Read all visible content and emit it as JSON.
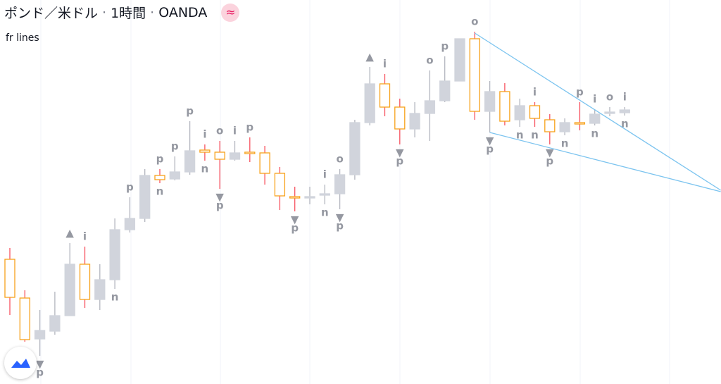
{
  "header": {
    "symbol": "ポンド／米ドル",
    "separator": "·",
    "interval": "1時間",
    "source": "OANDA",
    "badge": "≈"
  },
  "chart_data": {
    "type": "candlestick",
    "indicator": "fr lines",
    "open": [
      177,
      122,
      64,
      75,
      97,
      170,
      120,
      148,
      219,
      235,
      296,
      291,
      301,
      332,
      329,
      319,
      329,
      328,
      299,
      266,
      264,
      268,
      270,
      297,
      371,
      426,
      393,
      362,
      384,
      402,
      430,
      490,
      387,
      415,
      375,
      395,
      375,
      358,
      371,
      370,
      384,
      385
    ],
    "high": [
      193,
      133,
      105,
      131,
      200,
      195,
      170,
      235,
      265,
      305,
      305,
      323,
      373,
      340,
      345,
      345,
      350,
      338,
      308,
      280,
      280,
      283,
      305,
      375,
      450,
      440,
      405,
      400,
      445,
      465,
      490,
      500,
      430,
      427,
      405,
      400,
      383,
      377,
      400,
      390,
      393,
      393
    ],
    "low": [
      98,
      60,
      40,
      70,
      97,
      108,
      105,
      135,
      215,
      230,
      285,
      289,
      297,
      317,
      277,
      317,
      315,
      283,
      247,
      245,
      255,
      255,
      248,
      290,
      367,
      380,
      340,
      350,
      345,
      400,
      430,
      375,
      357,
      367,
      365,
      365,
      340,
      353,
      360,
      367,
      380,
      381
    ],
    "close": [
      123,
      63,
      76,
      97,
      170,
      120,
      148,
      219,
      235,
      296,
      290,
      301,
      331,
      329,
      319,
      328,
      327,
      299,
      267,
      264,
      266,
      270,
      297,
      371,
      426,
      393,
      362,
      384,
      402,
      430,
      490,
      387,
      415,
      373,
      395,
      377,
      358,
      371,
      369,
      383,
      386,
      389
    ],
    "ylim": [
      0,
      545
    ],
    "up_color": "#d1d4dc",
    "up_wick_color": "#b2b5be",
    "down_color": "#f7a21b",
    "down_wick_color": "#f7525f",
    "marker_color": "#9598a1",
    "line_color": "#7cc4ef",
    "markers": [
      {
        "candle": 2,
        "side": "below",
        "text": "▼"
      },
      {
        "candle": 2,
        "side": "below",
        "text": "p"
      },
      {
        "candle": 4,
        "side": "above",
        "text": "▲"
      },
      {
        "candle": 5,
        "side": "above",
        "text": "i"
      },
      {
        "candle": 7,
        "side": "below",
        "text": "n"
      },
      {
        "candle": 8,
        "side": "above",
        "text": "p"
      },
      {
        "candle": 10,
        "side": "above",
        "text": "p"
      },
      {
        "candle": 10,
        "side": "below",
        "text": "n"
      },
      {
        "candle": 11,
        "side": "above",
        "text": "p"
      },
      {
        "candle": 12,
        "side": "above",
        "text": "p"
      },
      {
        "candle": 13,
        "side": "above",
        "text": "i"
      },
      {
        "candle": 13,
        "side": "below",
        "text": "n"
      },
      {
        "candle": 14,
        "side": "above",
        "text": "o"
      },
      {
        "candle": 14,
        "side": "below",
        "text": "▼"
      },
      {
        "candle": 14,
        "side": "below",
        "text": "p"
      },
      {
        "candle": 15,
        "side": "above",
        "text": "i"
      },
      {
        "candle": 16,
        "side": "above",
        "text": "p"
      },
      {
        "candle": 19,
        "side": "below",
        "text": "▼"
      },
      {
        "candle": 19,
        "side": "below",
        "text": "p"
      },
      {
        "candle": 21,
        "side": "above",
        "text": "i"
      },
      {
        "candle": 21,
        "side": "below",
        "text": "n"
      },
      {
        "candle": 22,
        "side": "above",
        "text": "o"
      },
      {
        "candle": 22,
        "side": "below",
        "text": "▼"
      },
      {
        "candle": 22,
        "side": "below",
        "text": "p"
      },
      {
        "candle": 24,
        "side": "above",
        "text": "▲"
      },
      {
        "candle": 25,
        "side": "above",
        "text": "i"
      },
      {
        "candle": 26,
        "side": "below",
        "text": "▼"
      },
      {
        "candle": 26,
        "side": "below",
        "text": "p"
      },
      {
        "candle": 28,
        "side": "above",
        "text": "o"
      },
      {
        "candle": 29,
        "side": "above",
        "text": "p"
      },
      {
        "candle": 31,
        "side": "above",
        "text": "o"
      },
      {
        "candle": 32,
        "side": "below",
        "text": "▼"
      },
      {
        "candle": 32,
        "side": "below",
        "text": "p"
      },
      {
        "candle": 34,
        "side": "below",
        "text": "n"
      },
      {
        "candle": 35,
        "side": "above",
        "text": "i"
      },
      {
        "candle": 35,
        "side": "below",
        "text": "n"
      },
      {
        "candle": 36,
        "side": "below",
        "text": "▼"
      },
      {
        "candle": 36,
        "side": "below",
        "text": "p"
      },
      {
        "candle": 37,
        "side": "below",
        "text": "n"
      },
      {
        "candle": 38,
        "side": "above",
        "text": "p"
      },
      {
        "candle": 39,
        "side": "above",
        "text": "i"
      },
      {
        "candle": 39,
        "side": "below",
        "text": "n"
      },
      {
        "candle": 40,
        "side": "above",
        "text": "o"
      },
      {
        "candle": 41,
        "side": "above",
        "text": "i"
      },
      {
        "candle": 41,
        "side": "below",
        "text": "n"
      }
    ],
    "trend_lines": [
      {
        "from": [
          31,
          498
        ],
        "to": [
          47.4,
          275
        ]
      },
      {
        "from": [
          32,
          357
        ],
        "to": [
          47.4,
          273
        ]
      }
    ]
  }
}
